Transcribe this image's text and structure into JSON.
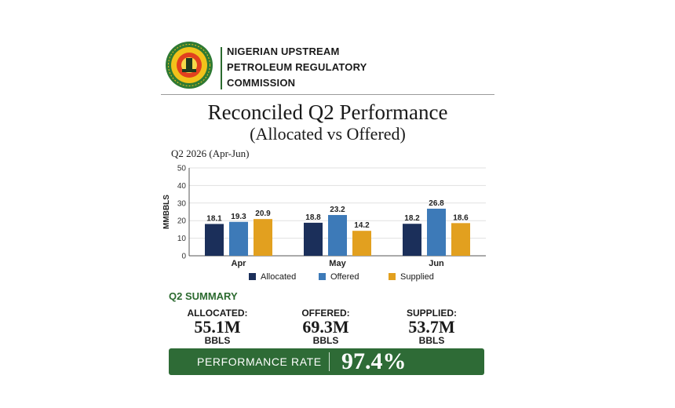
{
  "header": {
    "org_lines": [
      "NIGERIAN UPSTREAM",
      "PETROLEUM REGULATORY",
      "COMMISSION"
    ],
    "logo_icon": "nuprc-seal-icon"
  },
  "title": "Reconciled Q2 Performance",
  "subtitle": "(Allocated vs Offered)",
  "period": "Q2 2026 (Apr-Jun)",
  "chart_data": {
    "type": "bar",
    "categories": [
      "Apr",
      "May",
      "Jun"
    ],
    "ylabel": "MMBBLS",
    "ylim": [
      0,
      50
    ],
    "yticks": [
      0,
      10,
      20,
      30,
      40,
      50
    ],
    "grid": true,
    "legend": "bottom",
    "series": [
      {
        "name": "Allocated",
        "color": "#1b2f5a",
        "values": [
          18.1,
          18.8,
          18.2
        ]
      },
      {
        "name": "Offered",
        "color": "#3d7ab8",
        "values": [
          19.3,
          23.2,
          26.8
        ]
      },
      {
        "name": "Supplied",
        "color": "#e2a01f",
        "values": [
          20.9,
          14.2,
          18.6
        ]
      }
    ]
  },
  "summary": {
    "heading": "Q2 SUMMARY",
    "stats": [
      {
        "label": "ALLOCATED:",
        "value": "55.1M",
        "unit": "BBLS"
      },
      {
        "label": "OFFERED:",
        "value": "69.3M",
        "unit": "BBLS"
      },
      {
        "label": "SUPPLIED:",
        "value": "53.7M",
        "unit": "BBLS"
      }
    ],
    "performance_label": "PERFORMANCE RATE",
    "performance_value": "97.4%"
  },
  "colors": {
    "brand_green": "#2e6b36",
    "accent_orange": "#e2a01f"
  }
}
